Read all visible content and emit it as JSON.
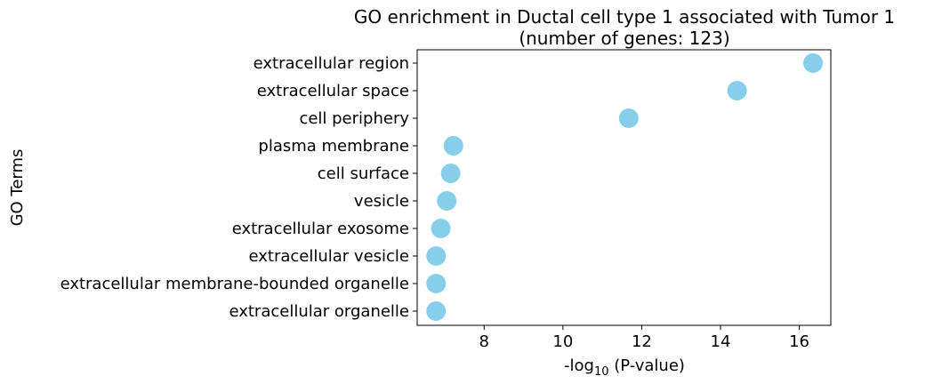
{
  "chart_data": {
    "type": "scatter",
    "title": "GO enrichment in Ductal cell type 1 associated with Tumor 1",
    "subtitle": "(number of genes: 123)",
    "xlabel": "-log10 (P-value)",
    "xlabel_parts": {
      "prefix": "-log",
      "subscript": "10",
      "suffix": " (P-value)"
    },
    "ylabel": "GO Terms",
    "categories": [
      "extracellular region",
      "extracellular space",
      "cell periphery",
      "plasma membrane",
      "cell surface",
      "vesicle",
      "extracellular exosome",
      "extracellular vesicle",
      "extracellular membrane-bounded organelle",
      "extracellular organelle"
    ],
    "values": [
      16.35,
      14.42,
      11.67,
      7.22,
      7.15,
      7.05,
      6.9,
      6.78,
      6.78,
      6.78
    ],
    "xlim": [
      6.3,
      16.8
    ],
    "xticks": [
      8,
      10,
      12,
      14,
      16
    ],
    "grid": false,
    "legend": "none",
    "marker_color": "#87CEEB"
  }
}
